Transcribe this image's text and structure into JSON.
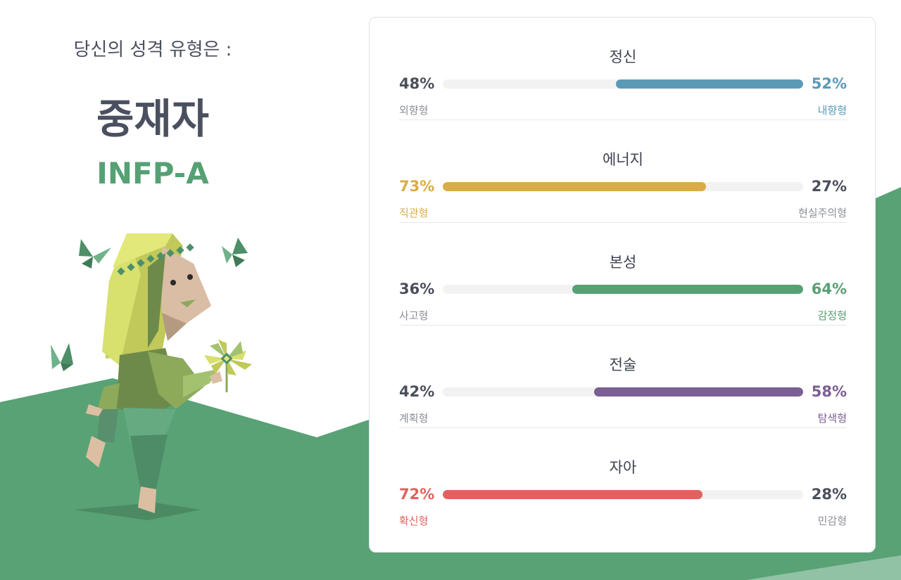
{
  "intro": "당신의 성격 유형은 :",
  "type_name": "중재자",
  "type_code": "INFP-A",
  "colors": {
    "brand_green": "#56a174",
    "hill_green": "#58a275",
    "text_dark": "#4a4f5c",
    "text_muted": "#8b8f98",
    "track": "#f2f2f3"
  },
  "illustration": {
    "subject": "mediator-character-icon"
  },
  "traits": [
    {
      "title": "정신",
      "left_pct": "48%",
      "right_pct": "52%",
      "left_label": "외향형",
      "right_label": "내향형",
      "dominant": "right",
      "dominant_value": 0.52,
      "color": "#5b9ab7"
    },
    {
      "title": "에너지",
      "left_pct": "73%",
      "right_pct": "27%",
      "left_label": "직관형",
      "right_label": "현실주의형",
      "dominant": "left",
      "dominant_value": 0.73,
      "color": "#d9ac47"
    },
    {
      "title": "본성",
      "left_pct": "36%",
      "right_pct": "64%",
      "left_label": "사고형",
      "right_label": "감정형",
      "dominant": "right",
      "dominant_value": 0.64,
      "color": "#56a174"
    },
    {
      "title": "전술",
      "left_pct": "42%",
      "right_pct": "58%",
      "left_label": "계획형",
      "right_label": "탐색형",
      "dominant": "right",
      "dominant_value": 0.58,
      "color": "#7b5e93"
    },
    {
      "title": "자아",
      "left_pct": "72%",
      "right_pct": "28%",
      "left_label": "확신형",
      "right_label": "민감형",
      "dominant": "left",
      "dominant_value": 0.72,
      "color": "#e0625f"
    }
  ]
}
